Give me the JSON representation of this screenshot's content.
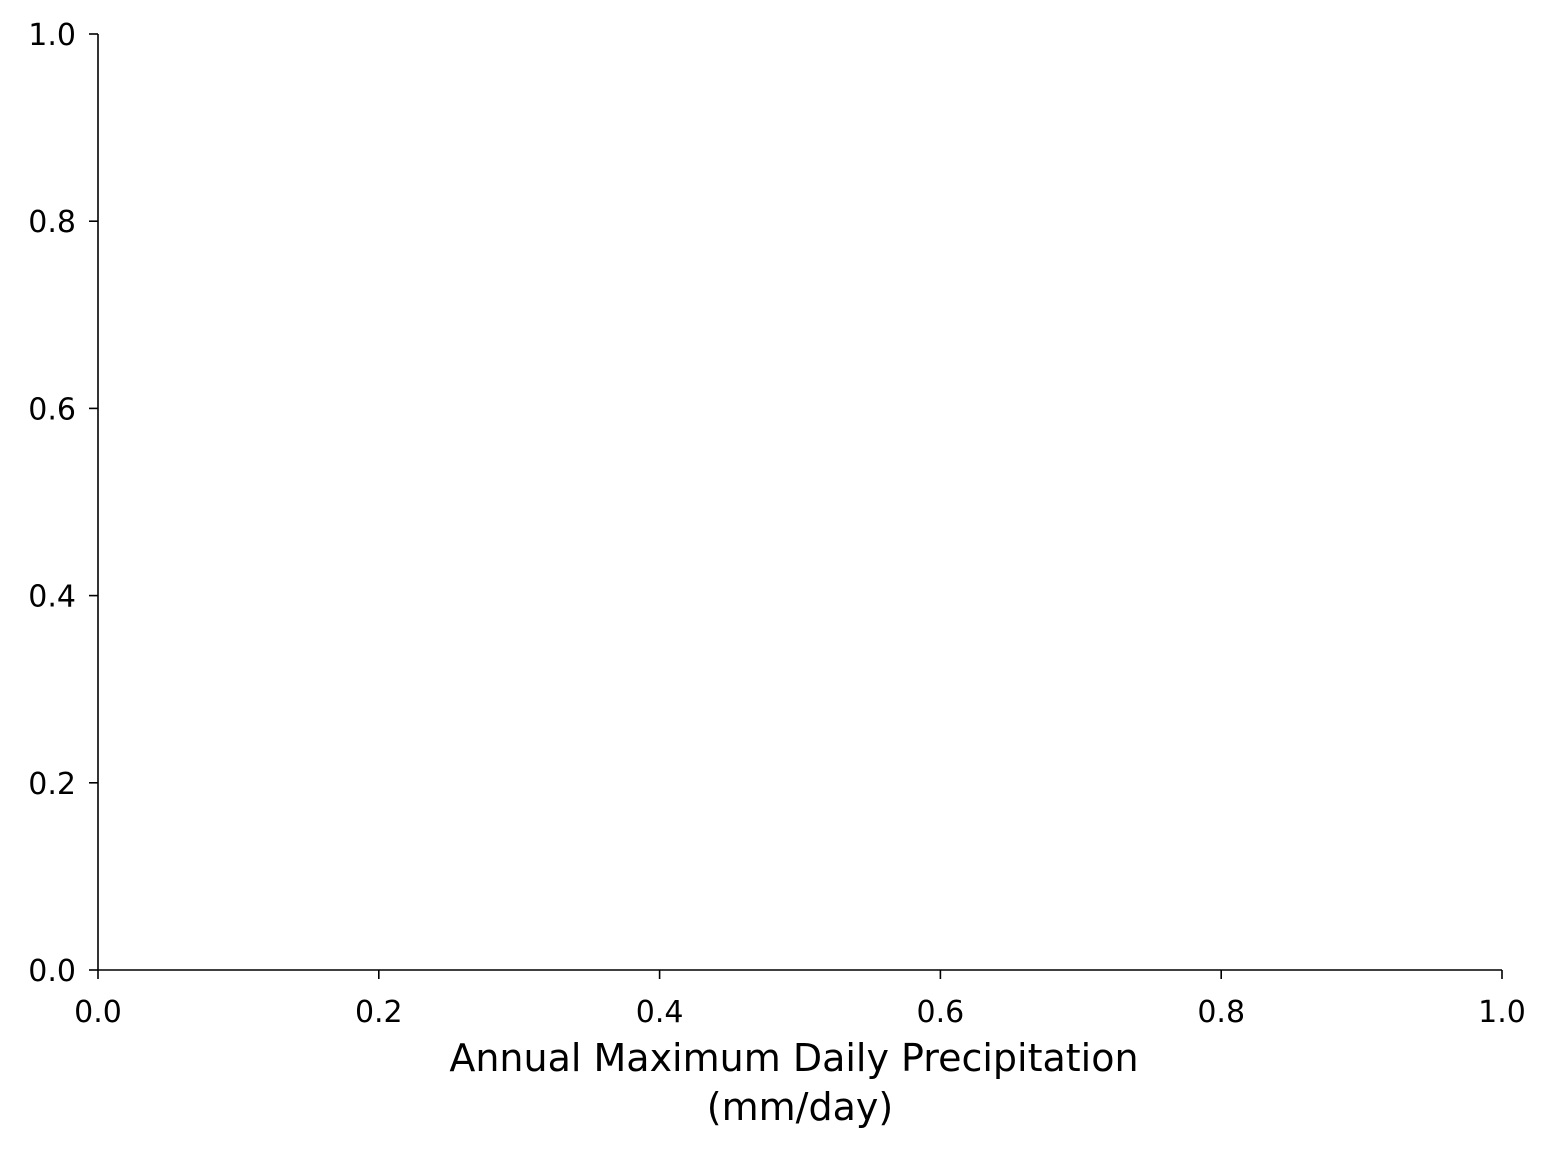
{
  "chart_data": {
    "type": "line",
    "title": "",
    "xlabel": "Annual Maximum Daily Precipitation",
    "xlabel_unit": "(mm/day)",
    "ylabel": "",
    "xlim": [
      0,
      1
    ],
    "ylim": [
      0,
      1
    ],
    "x_ticks": [
      "0.0",
      "0.2",
      "0.4",
      "0.6",
      "0.8",
      "1.0"
    ],
    "y_ticks": [
      "0.0",
      "0.2",
      "0.4",
      "0.6",
      "0.8",
      "1.0"
    ],
    "grid": false,
    "series": [],
    "spines": [
      "left",
      "bottom"
    ],
    "axis_color": "#000000",
    "background": "#ffffff"
  }
}
